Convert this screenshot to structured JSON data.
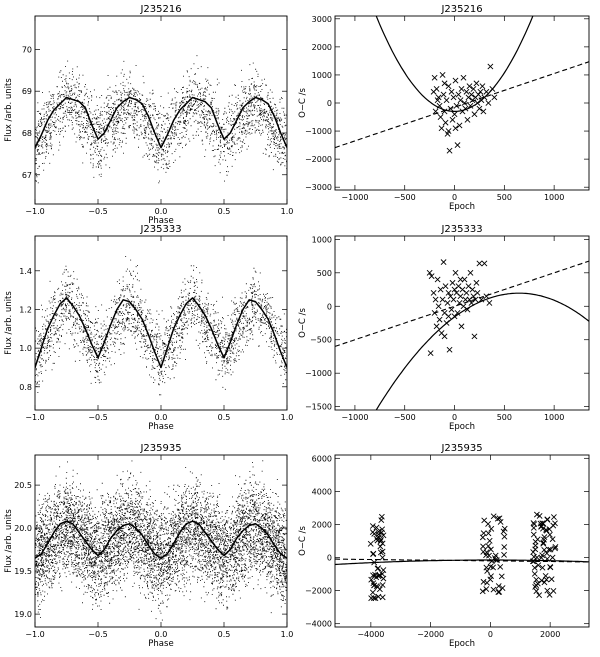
{
  "chart_data": [
    {
      "type": "scatter",
      "title": "J235216",
      "xlabel": "Phase",
      "ylabel": "Flux /arb. units",
      "xlim": [
        -1.0,
        1.0
      ],
      "ylim": [
        66.3,
        70.8
      ],
      "xticks": [
        -1.0,
        -0.5,
        0.0,
        0.5,
        1.0
      ],
      "xtick_labels": [
        "−1.0",
        "−0.5",
        "0.0",
        "0.5",
        "1.0"
      ],
      "yticks": [
        67,
        68,
        69,
        70
      ],
      "ytick_labels": [
        "67",
        "68",
        "69",
        "70"
      ],
      "scatter_center": [
        [
          0.0,
          67.7
        ],
        [
          0.25,
          68.85
        ],
        [
          0.5,
          67.9
        ],
        [
          0.75,
          68.8
        ],
        [
          1.0,
          67.7
        ]
      ],
      "scatter_spread": 0.75,
      "scatter_count": 2600,
      "curve": {
        "x": [
          0.0,
          0.05,
          0.1,
          0.15,
          0.2,
          0.25,
          0.3,
          0.35,
          0.4,
          0.45,
          0.5,
          0.55,
          0.6,
          0.65,
          0.7,
          0.75,
          0.8,
          0.85,
          0.9,
          0.95,
          1.0
        ],
        "y": [
          67.65,
          67.95,
          68.3,
          68.55,
          68.7,
          68.85,
          68.8,
          68.75,
          68.6,
          68.2,
          67.85,
          68.0,
          68.3,
          68.6,
          68.75,
          68.85,
          68.8,
          68.7,
          68.4,
          68.0,
          67.65
        ]
      }
    },
    {
      "type": "scatter",
      "title": "J235216",
      "xlabel": "Epoch",
      "ylabel": "O−C /s",
      "xlim": [
        -1200,
        1350
      ],
      "ylim": [
        -3100,
        3100
      ],
      "xticks": [
        -1000,
        -500,
        0,
        500,
        1000
      ],
      "xtick_labels": [
        "−1000",
        "−500",
        "0",
        "500",
        "1000"
      ],
      "yticks": [
        -3000,
        -2000,
        -1000,
        0,
        1000,
        2000,
        3000
      ],
      "ytick_labels": [
        "−3000",
        "−2000",
        "−1000",
        "0",
        "1000",
        "2000",
        "3000"
      ],
      "points": [
        [
          -200,
          900
        ],
        [
          -180,
          500
        ],
        [
          -160,
          200
        ],
        [
          -150,
          -100
        ],
        [
          -140,
          -500
        ],
        [
          -130,
          -900
        ],
        [
          -120,
          1000
        ],
        [
          -110,
          300
        ],
        [
          -100,
          -300
        ],
        [
          -90,
          -700
        ],
        [
          -80,
          100
        ],
        [
          -70,
          -1100
        ],
        [
          -60,
          600
        ],
        [
          -50,
          -1700
        ],
        [
          -40,
          -200
        ],
        [
          -30,
          400
        ],
        [
          -20,
          -600
        ],
        [
          -10,
          200
        ],
        [
          0,
          -400
        ],
        [
          10,
          800
        ],
        [
          20,
          -100
        ],
        [
          30,
          -1500
        ],
        [
          40,
          300
        ],
        [
          50,
          -800
        ],
        [
          60,
          100
        ],
        [
          70,
          500
        ],
        [
          80,
          -300
        ],
        [
          90,
          900
        ],
        [
          100,
          0
        ],
        [
          110,
          -200
        ],
        [
          120,
          400
        ],
        [
          130,
          -600
        ],
        [
          140,
          200
        ],
        [
          150,
          600
        ],
        [
          160,
          -100
        ],
        [
          170,
          300
        ],
        [
          180,
          100
        ],
        [
          190,
          500
        ],
        [
          200,
          -400
        ],
        [
          210,
          200
        ],
        [
          220,
          700
        ],
        [
          230,
          0
        ],
        [
          240,
          300
        ],
        [
          250,
          -200
        ],
        [
          260,
          400
        ],
        [
          270,
          100
        ],
        [
          280,
          600
        ],
        [
          290,
          -300
        ],
        [
          300,
          200
        ],
        [
          320,
          400
        ],
        [
          340,
          0
        ],
        [
          360,
          1300
        ],
        [
          380,
          500
        ],
        [
          400,
          200
        ],
        [
          -190,
          -300
        ],
        [
          -170,
          100
        ],
        [
          -60,
          -1000
        ],
        [
          10,
          -900
        ],
        [
          -210,
          400
        ],
        [
          -100,
          700
        ]
      ],
      "quadratic_fit": {
        "a": 0.0055,
        "b": 0.0,
        "c": -300
      },
      "linear_fit": {
        "slope": 1.2,
        "intercept": -150
      }
    },
    {
      "type": "scatter",
      "title": "J235333",
      "xlabel": "Phase",
      "ylabel": "Flux /arb. units",
      "xlim": [
        -1.0,
        1.0
      ],
      "ylim": [
        0.68,
        1.58
      ],
      "xticks": [
        -1.0,
        -0.5,
        0.0,
        0.5,
        1.0
      ],
      "xtick_labels": [
        "−1.0",
        "−0.5",
        "0.0",
        "0.5",
        "1.0"
      ],
      "yticks": [
        0.8,
        1.0,
        1.2,
        1.4
      ],
      "ytick_labels": [
        "0.8",
        "1.0",
        "1.2",
        "1.4"
      ],
      "scatter_center": [
        [
          0.0,
          0.95
        ],
        [
          0.25,
          1.25
        ],
        [
          0.5,
          0.98
        ],
        [
          0.75,
          1.25
        ],
        [
          1.0,
          0.95
        ]
      ],
      "scatter_spread": 0.16,
      "scatter_count": 2400,
      "curve": {
        "x": [
          0.0,
          0.05,
          0.1,
          0.15,
          0.2,
          0.25,
          0.3,
          0.35,
          0.4,
          0.45,
          0.5,
          0.55,
          0.6,
          0.65,
          0.7,
          0.75,
          0.8,
          0.85,
          0.9,
          0.95,
          1.0
        ],
        "y": [
          0.9,
          1.0,
          1.1,
          1.17,
          1.23,
          1.26,
          1.22,
          1.17,
          1.1,
          1.02,
          0.95,
          1.03,
          1.12,
          1.2,
          1.25,
          1.24,
          1.2,
          1.15,
          1.07,
          0.98,
          0.9
        ]
      }
    },
    {
      "type": "scatter",
      "title": "J235333",
      "xlabel": "Epoch",
      "ylabel": "O−C /s",
      "xlim": [
        -1200,
        1350
      ],
      "ylim": [
        -1550,
        1050
      ],
      "xticks": [
        -1000,
        -500,
        0,
        500,
        1000
      ],
      "xtick_labels": [
        "−1000",
        "−500",
        "0",
        "500",
        "1000"
      ],
      "yticks": [
        -1500,
        -1000,
        -500,
        0,
        500,
        1000
      ],
      "ytick_labels": [
        "−1500",
        "−1000",
        "−500",
        "0",
        "500",
        "1000"
      ],
      "points": [
        [
          -250,
          500
        ],
        [
          -230,
          450
        ],
        [
          -210,
          200
        ],
        [
          -200,
          -100
        ],
        [
          -190,
          100
        ],
        [
          -180,
          -300
        ],
        [
          -170,
          400
        ],
        [
          -160,
          0
        ],
        [
          -150,
          -200
        ],
        [
          -140,
          250
        ],
        [
          -130,
          -400
        ],
        [
          -120,
          100
        ],
        [
          -110,
          660
        ],
        [
          -100,
          -100
        ],
        [
          -90,
          300
        ],
        [
          -80,
          -250
        ],
        [
          -70,
          50
        ],
        [
          -60,
          200
        ],
        [
          -50,
          -650
        ],
        [
          -40,
          150
        ],
        [
          -30,
          -50
        ],
        [
          -20,
          350
        ],
        [
          -10,
          100
        ],
        [
          0,
          -150
        ],
        [
          10,
          500
        ],
        [
          20,
          200
        ],
        [
          30,
          -100
        ],
        [
          40,
          300
        ],
        [
          50,
          50
        ],
        [
          60,
          150
        ],
        [
          70,
          -300
        ],
        [
          80,
          250
        ],
        [
          90,
          0
        ],
        [
          100,
          400
        ],
        [
          110,
          100
        ],
        [
          120,
          200
        ],
        [
          130,
          -50
        ],
        [
          140,
          300
        ],
        [
          150,
          100
        ],
        [
          160,
          500
        ],
        [
          170,
          50
        ],
        [
          180,
          250
        ],
        [
          190,
          150
        ],
        [
          200,
          -450
        ],
        [
          210,
          100
        ],
        [
          220,
          350
        ],
        [
          230,
          200
        ],
        [
          250,
          640
        ],
        [
          270,
          100
        ],
        [
          300,
          640
        ],
        [
          320,
          150
        ],
        [
          350,
          50
        ],
        [
          -240,
          -700
        ],
        [
          -100,
          -450
        ],
        [
          -60,
          -150
        ],
        [
          0,
          250
        ],
        [
          60,
          400
        ]
      ],
      "quadratic_fit": {
        "a": -0.00085,
        "b": 1.1,
        "c": -160
      },
      "linear_fit": {
        "slope": 0.5,
        "intercept": 0
      }
    },
    {
      "type": "scatter",
      "title": "J235935",
      "xlabel": "Phase",
      "ylabel": "Flux /arb. units",
      "xlim": [
        -1.0,
        1.0
      ],
      "ylim": [
        18.85,
        20.85
      ],
      "xticks": [
        -1.0,
        -0.5,
        0.0,
        0.5,
        1.0
      ],
      "xtick_labels": [
        "−1.0",
        "−0.5",
        "0.0",
        "0.5",
        "1.0"
      ],
      "yticks": [
        19.0,
        19.5,
        20.0,
        20.5
      ],
      "ytick_labels": [
        "19.0",
        "19.5",
        "20.0",
        "20.5"
      ],
      "scatter_center": [
        [
          0.0,
          19.65
        ],
        [
          0.25,
          20.05
        ],
        [
          0.5,
          19.7
        ],
        [
          0.75,
          20.05
        ],
        [
          1.0,
          19.65
        ]
      ],
      "scatter_spread": 0.5,
      "scatter_count": 7000,
      "curve": {
        "x": [
          0.0,
          0.05,
          0.1,
          0.15,
          0.2,
          0.25,
          0.3,
          0.35,
          0.4,
          0.45,
          0.5,
          0.55,
          0.6,
          0.65,
          0.7,
          0.75,
          0.8,
          0.85,
          0.9,
          0.95,
          1.0
        ],
        "y": [
          19.65,
          19.7,
          19.82,
          19.95,
          20.05,
          20.08,
          20.05,
          19.95,
          19.85,
          19.75,
          19.68,
          19.75,
          19.88,
          19.97,
          20.03,
          20.05,
          20.0,
          19.92,
          19.8,
          19.7,
          19.65
        ]
      }
    },
    {
      "type": "scatter",
      "title": "J235935",
      "xlabel": "Epoch",
      "ylabel": "O−C /s",
      "xlim": [
        -5200,
        3300
      ],
      "ylim": [
        -4200,
        6200
      ],
      "xticks": [
        -4000,
        -2000,
        0,
        2000
      ],
      "xtick_labels": [
        "−4000",
        "−2000",
        "0",
        "2000"
      ],
      "yticks": [
        -4000,
        -2000,
        0,
        2000,
        4000,
        6000
      ],
      "ytick_labels": [
        "−4000",
        "−2000",
        "0",
        "2000",
        "4000",
        "6000"
      ],
      "point_clusters": [
        {
          "x_center": -3800,
          "x_half_width": 230,
          "y_min": -2700,
          "y_max": 2500,
          "count": 50
        },
        {
          "x_center": 100,
          "x_half_width": 380,
          "y_min": -2100,
          "y_max": 2600,
          "count": 45
        },
        {
          "x_center": 1800,
          "x_half_width": 380,
          "y_min": -2300,
          "y_max": 2600,
          "count": 65
        }
      ],
      "quadratic_fit": {
        "a": -1e-05,
        "b": 0.0,
        "c": -150
      },
      "linear_fit": {
        "slope": -0.02,
        "intercept": -200
      }
    }
  ]
}
